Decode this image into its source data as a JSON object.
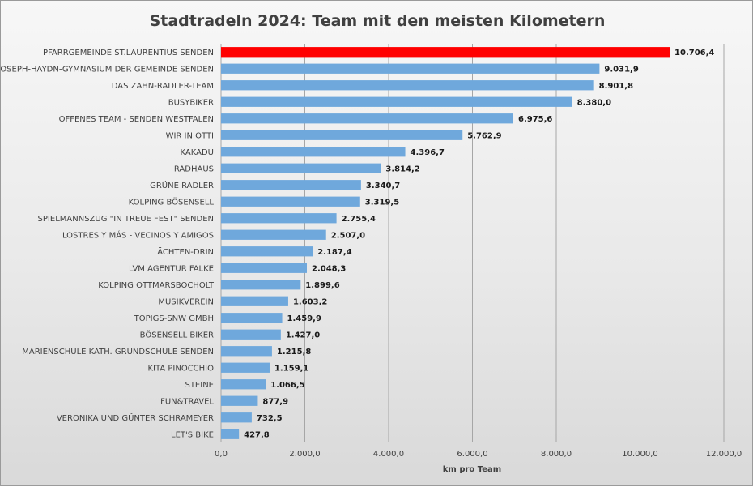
{
  "chart_data": {
    "type": "bar",
    "orientation": "horizontal",
    "title": "Stadtradeln 2024: Team mit den meisten Kilometern",
    "xlabel": "km pro Team",
    "ylabel": "",
    "xlim": [
      0,
      12000
    ],
    "ticks": [
      0,
      2000,
      4000,
      6000,
      8000,
      10000,
      12000
    ],
    "tick_labels": [
      "0,0",
      "2.000,0",
      "4.000,0",
      "6.000,0",
      "8.000,0",
      "10.000,0",
      "12.000,0"
    ],
    "grid": true,
    "legend": "none",
    "colors": {
      "default": "#6fa8dc",
      "highlight": "#ff0000"
    },
    "highlight_index": 0,
    "categories": [
      "PFARRGEMEINDE ST.LAURENTIUS SENDEN",
      "JOSEPH-HAYDN-GYMNASIUM DER GEMEINDE SENDEN",
      "DAS ZAHN-RADLER-TEAM",
      "BUSYBIKER",
      "OFFENES TEAM - SENDEN WESTFALEN",
      "WIR IN OTTI",
      "KAKADU",
      "RADHAUS",
      "GRÜNE RADLER",
      "KOLPING BÖSENSELL",
      "SPIELMANNSZUG \"IN TREUE FEST\" SENDEN",
      "LOSTRES Y MÁS - VECINOS Y AMIGOS",
      "ÄCHTEN-DRIN",
      "LVM AGENTUR FALKE",
      "KOLPING OTTMARSBOCHOLT",
      "MUSIKVEREIN",
      "TOPIGS-SNW GMBH",
      "BÖSENSELL BIKER",
      "MARIENSCHULE KATH. GRUNDSCHULE SENDEN",
      "KITA PINOCCHIO",
      "STEINE",
      "FUN&TRAVEL",
      "VERONIKA UND GÜNTER SCHRAMEYER",
      "LET'S BIKE"
    ],
    "values": [
      10706.4,
      9031.9,
      8901.8,
      8380.0,
      6975.6,
      5762.9,
      4396.7,
      3814.2,
      3340.7,
      3319.5,
      2755.4,
      2507.0,
      2187.4,
      2048.3,
      1899.6,
      1603.2,
      1459.9,
      1427.0,
      1215.8,
      1159.1,
      1066.5,
      877.9,
      732.5,
      427.8
    ],
    "value_labels": [
      "10.706,4",
      "9.031,9",
      "8.901,8",
      "8.380,0",
      "6.975,6",
      "5.762,9",
      "4.396,7",
      "3.814,2",
      "3.340,7",
      "3.319,5",
      "2.755,4",
      "2.507,0",
      "2.187,4",
      "2.048,3",
      "1.899,6",
      "1.603,2",
      "1.459,9",
      "1.427,0",
      "1.215,8",
      "1.159,1",
      "1.066,5",
      "877,9",
      "732,5",
      "427,8"
    ]
  }
}
